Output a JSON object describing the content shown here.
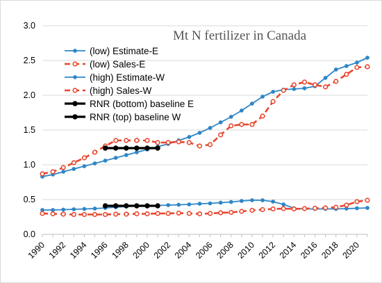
{
  "chart_data": {
    "type": "line",
    "title": "Mt N fertilizer in Canada",
    "xlabel": "",
    "ylabel": "",
    "xlim": [
      1990,
      2021
    ],
    "ylim": [
      0,
      3.0
    ],
    "grid": "horizontal",
    "legend_position": "top-left",
    "y_ticks": [
      "0.0",
      "0.5",
      "1.0",
      "1.5",
      "2.0",
      "2.5",
      "3.0"
    ],
    "x_ticks": [
      "1990",
      "1992",
      "1994",
      "1996",
      "1998",
      "2000",
      "2002",
      "2004",
      "2006",
      "2008",
      "2010",
      "2012",
      "2014",
      "2016",
      "2018",
      "2020"
    ],
    "series": [
      {
        "name": "(low) Estimate-E",
        "color": "#2e86c8",
        "style": "solid-marker",
        "x": [
          1990,
          1991,
          1992,
          1993,
          1994,
          1995,
          1996,
          1997,
          1998,
          1999,
          2000,
          2001,
          2002,
          2003,
          2004,
          2005,
          2006,
          2007,
          2008,
          2009,
          2010,
          2011,
          2012,
          2013,
          2014,
          2015,
          2016,
          2017,
          2018,
          2019,
          2020,
          2021
        ],
        "y": [
          0.35,
          0.35,
          0.355,
          0.36,
          0.365,
          0.37,
          0.38,
          0.39,
          0.4,
          0.405,
          0.41,
          0.415,
          0.42,
          0.425,
          0.43,
          0.44,
          0.445,
          0.455,
          0.465,
          0.48,
          0.49,
          0.49,
          0.47,
          0.43,
          0.375,
          0.365,
          0.365,
          0.365,
          0.365,
          0.37,
          0.375,
          0.38
        ]
      },
      {
        "name": "(low) Sales-E",
        "color": "#e8452c",
        "style": "dashed-marker",
        "x": [
          1990,
          1991,
          1992,
          1993,
          1994,
          1995,
          1996,
          1997,
          1998,
          1999,
          2000,
          2001,
          2002,
          2003,
          2004,
          2005,
          2006,
          2007,
          2008,
          2009,
          2010,
          2011,
          2012,
          2013,
          2014,
          2015,
          2016,
          2017,
          2018,
          2019,
          2020,
          2021
        ],
        "y": [
          0.3,
          0.295,
          0.29,
          0.285,
          0.285,
          0.285,
          0.285,
          0.29,
          0.29,
          0.295,
          0.295,
          0.3,
          0.3,
          0.305,
          0.3,
          0.295,
          0.3,
          0.31,
          0.315,
          0.33,
          0.345,
          0.355,
          0.365,
          0.37,
          0.365,
          0.37,
          0.375,
          0.38,
          0.39,
          0.42,
          0.47,
          0.49
        ]
      },
      {
        "name": "(high) Estimate-W",
        "color": "#2e86c8",
        "style": "solid-marker",
        "x": [
          1990,
          1991,
          1992,
          1993,
          1994,
          1995,
          1996,
          1997,
          1998,
          1999,
          2000,
          2001,
          2002,
          2003,
          2004,
          2005,
          2006,
          2007,
          2008,
          2009,
          2010,
          2011,
          2012,
          2013,
          2014,
          2015,
          2016,
          2017,
          2018,
          2019,
          2020,
          2021
        ],
        "y": [
          0.83,
          0.86,
          0.9,
          0.94,
          0.98,
          1.02,
          1.06,
          1.1,
          1.14,
          1.18,
          1.22,
          1.26,
          1.3,
          1.35,
          1.4,
          1.46,
          1.53,
          1.61,
          1.69,
          1.78,
          1.88,
          1.98,
          2.05,
          2.08,
          2.09,
          2.1,
          2.13,
          2.25,
          2.37,
          2.42,
          2.47,
          2.54
        ]
      },
      {
        "name": "(high) Sales-W",
        "color": "#e8452c",
        "style": "dashed-marker",
        "x": [
          1990,
          1991,
          1992,
          1993,
          1994,
          1995,
          1996,
          1997,
          1998,
          1999,
          2000,
          2001,
          2002,
          2003,
          2004,
          2005,
          2006,
          2007,
          2008,
          2009,
          2010,
          2011,
          2012,
          2013,
          2014,
          2015,
          2016,
          2017,
          2018,
          2019,
          2020,
          2021
        ],
        "y": [
          0.87,
          0.9,
          0.96,
          1.03,
          1.1,
          1.18,
          1.27,
          1.35,
          1.35,
          1.35,
          1.35,
          1.32,
          1.32,
          1.33,
          1.32,
          1.27,
          1.29,
          1.43,
          1.56,
          1.58,
          1.58,
          1.7,
          1.91,
          2.07,
          2.15,
          2.19,
          2.15,
          2.12,
          2.2,
          2.3,
          2.4,
          2.41
        ]
      },
      {
        "name": "RNR (bottom) baseline E",
        "color": "#000000",
        "style": "baseline",
        "x": [
          1996,
          1997,
          1998,
          1999,
          2000,
          2001
        ],
        "y": [
          0.41,
          0.41,
          0.41,
          0.41,
          0.41,
          0.41
        ]
      },
      {
        "name": "RNR (top) baseline W",
        "color": "#000000",
        "style": "baseline",
        "x": [
          1996,
          1997,
          1998,
          1999,
          2000,
          2001
        ],
        "y": [
          1.24,
          1.24,
          1.24,
          1.24,
          1.24,
          1.24
        ]
      }
    ]
  }
}
